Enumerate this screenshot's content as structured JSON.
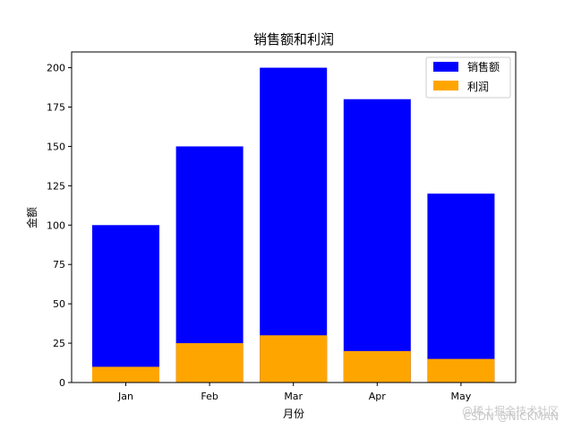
{
  "chart_data": {
    "type": "bar",
    "title": "销售额和利润",
    "xlabel": "月份",
    "ylabel": "金额",
    "categories": [
      "Jan",
      "Feb",
      "Mar",
      "Apr",
      "May"
    ],
    "series": [
      {
        "name": "销售额",
        "values": [
          100,
          150,
          200,
          180,
          120
        ],
        "color": "#0000ff"
      },
      {
        "name": "利润",
        "values": [
          10,
          25,
          30,
          20,
          15
        ],
        "color": "#ffa500"
      }
    ],
    "ylim": [
      0,
      210
    ],
    "yticks": [
      0,
      25,
      50,
      75,
      100,
      125,
      150,
      175,
      200
    ],
    "grid": false,
    "legend_position": "top-right"
  },
  "watermark": {
    "line1": "@稀土掘金技术社区",
    "line2": "CSDN @NICKMAN"
  }
}
